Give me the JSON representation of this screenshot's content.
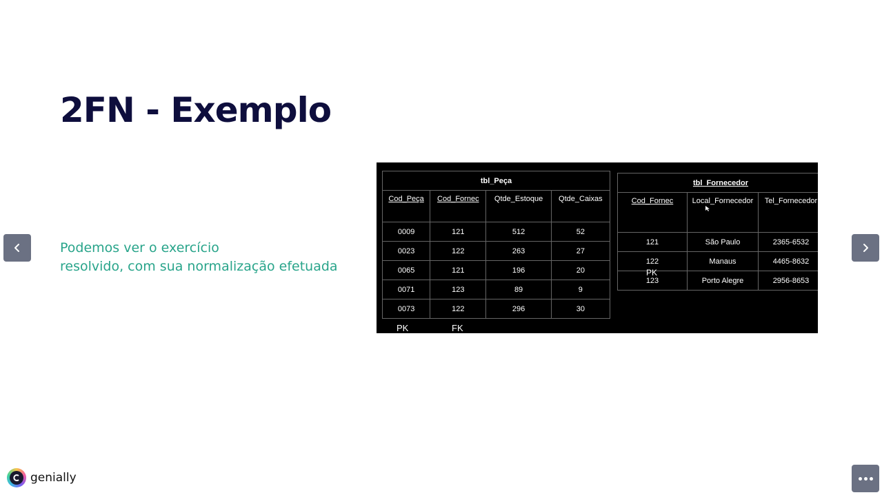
{
  "slide": {
    "title": "2FN - Exemplo",
    "subtitle_lines": [
      "Podemos ver o exercício",
      "resolvido, com sua normalização efetuada"
    ]
  },
  "figure": {
    "tbl_peca": {
      "caption": "tbl_Peça",
      "headers": [
        "Cod_Peça",
        "Cod_Fornec",
        "Qtde_Estoque",
        "Qtde_Caixas"
      ],
      "rows": [
        [
          "0009",
          "121",
          "512",
          "52"
        ],
        [
          "0023",
          "122",
          "263",
          "27"
        ],
        [
          "0065",
          "121",
          "196",
          "20"
        ],
        [
          "0071",
          "123",
          "89",
          "9"
        ],
        [
          "0073",
          "122",
          "296",
          "30"
        ]
      ],
      "pk_label": "PK",
      "fk_label": "FK"
    },
    "tbl_fornecedor": {
      "caption": "tbl_Fornecedor",
      "headers": [
        "Cod_Fornec",
        "Local_Fornecedor",
        "Tel_Fornecedor"
      ],
      "rows": [
        [
          "121",
          "São Paulo",
          "2365-6532"
        ],
        [
          "122",
          "Manaus",
          "4465-8632"
        ],
        [
          "123",
          "Porto Alegre",
          "2956-8653"
        ]
      ],
      "pk_label": "PK"
    }
  },
  "branding": {
    "name": "genially"
  },
  "colors": {
    "title": "#0e0e3d",
    "subtitle": "#28a48a",
    "nav_button": "#6b7183"
  }
}
